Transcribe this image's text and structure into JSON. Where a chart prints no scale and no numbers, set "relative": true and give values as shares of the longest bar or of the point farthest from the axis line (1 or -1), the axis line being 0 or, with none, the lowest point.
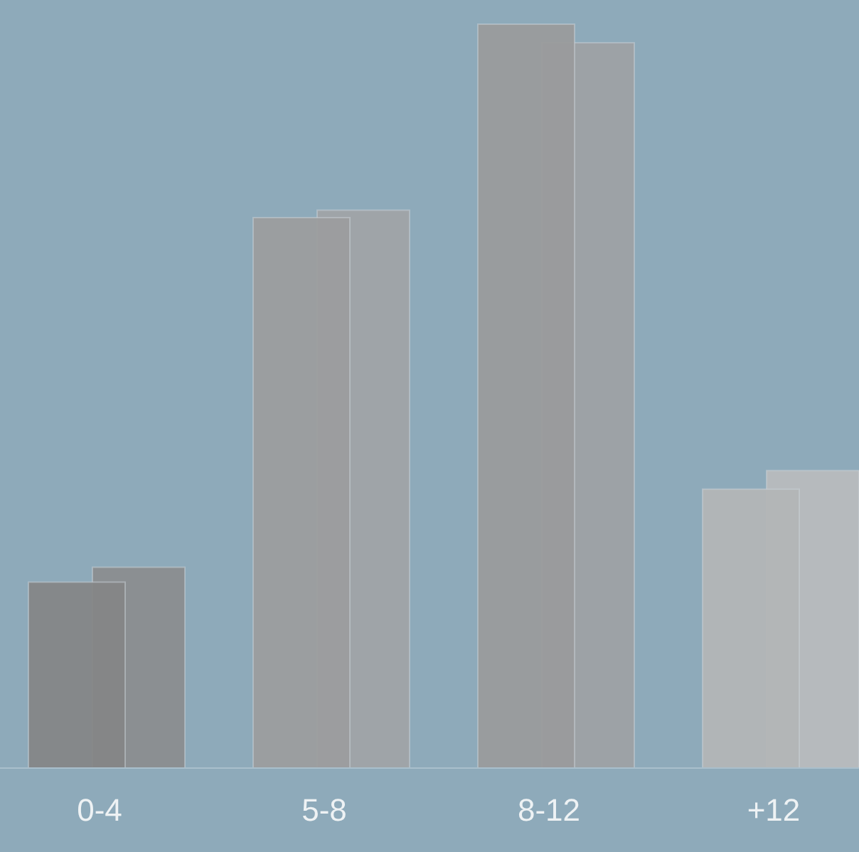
{
  "chart_data": {
    "type": "bar",
    "relative": true,
    "categories": [
      "0-4",
      "5-8",
      "8-12",
      "+12"
    ],
    "series": [
      {
        "colors": [
          "#858687",
          "#9c9d9e",
          "#9a9b9c",
          "#b3b5b6"
        ],
        "values": [
          0.25,
          0.74,
          1,
          0.375
        ]
      },
      {
        "colors": [
          "#8b8d8f",
          "#a0a3a6",
          "#9ea1a4",
          "#b8bbbd"
        ],
        "values": [
          0.27,
          0.75,
          0.975,
          0.4
        ]
      }
    ]
  }
}
